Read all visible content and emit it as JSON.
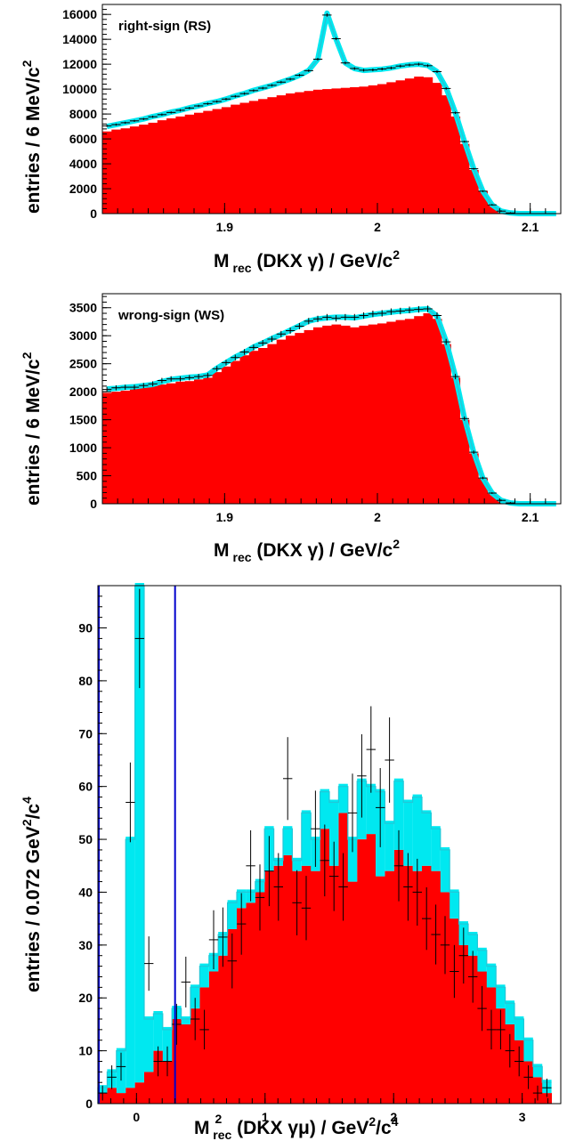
{
  "colors": {
    "background_fill": "#ff0000",
    "total_fill": "#00e8f0",
    "total_line": "#22c8d8",
    "data_marker": "#000000",
    "cut_line": "#0000cc",
    "frame": "#000000"
  },
  "chart_data": [
    {
      "type": "bar",
      "panel_label": "right-sign (RS)",
      "xlabel": {
        "main": "M",
        "sub": "rec",
        "rest": " (DKX γ) / GeV/c",
        "sup": "2"
      },
      "ylabel": {
        "main": "entries / 6 MeV/c",
        "sup": "2"
      },
      "xlim": [
        1.82,
        2.12
      ],
      "ylim": [
        0,
        16800
      ],
      "x_ticks": [
        1.9,
        2.0,
        2.1
      ],
      "x_tick_labels": [
        "1.9",
        "2",
        "2.1"
      ],
      "y_ticks": [
        0,
        2000,
        4000,
        6000,
        8000,
        10000,
        12000,
        14000,
        16000
      ],
      "y_tick_labels": [
        "0",
        "2000",
        "4000",
        "6000",
        "8000",
        "10000",
        "12000",
        "14000",
        "16000"
      ],
      "bin_width": 0.006,
      "bins_x": [
        1.823,
        1.829,
        1.835,
        1.841,
        1.847,
        1.853,
        1.859,
        1.865,
        1.871,
        1.877,
        1.883,
        1.889,
        1.895,
        1.901,
        1.907,
        1.913,
        1.919,
        1.925,
        1.931,
        1.937,
        1.943,
        1.949,
        1.955,
        1.961,
        1.967,
        1.973,
        1.979,
        1.985,
        1.991,
        1.997,
        2.003,
        2.009,
        2.015,
        2.021,
        2.027,
        2.033,
        2.039,
        2.045,
        2.051,
        2.057,
        2.063,
        2.069,
        2.075,
        2.081,
        2.087,
        2.093,
        2.099,
        2.105,
        2.111,
        2.117
      ],
      "background": [
        6600,
        6750,
        6850,
        7000,
        7150,
        7300,
        7500,
        7650,
        7800,
        7950,
        8100,
        8250,
        8400,
        8550,
        8750,
        8900,
        9050,
        9200,
        9350,
        9500,
        9650,
        9750,
        9850,
        9950,
        10000,
        10050,
        10100,
        10150,
        10200,
        10300,
        10400,
        10550,
        10700,
        10850,
        11000,
        10950,
        10500,
        9500,
        7800,
        5600,
        3500,
        1800,
        700,
        200,
        50,
        0,
        0,
        0,
        0,
        0
      ],
      "total_fit": [
        7000,
        7150,
        7300,
        7450,
        7600,
        7800,
        7950,
        8150,
        8300,
        8500,
        8650,
        8850,
        9000,
        9200,
        9450,
        9650,
        9900,
        10100,
        10300,
        10550,
        10800,
        11100,
        11500,
        12400,
        16100,
        14000,
        12100,
        11650,
        11500,
        11550,
        11600,
        11700,
        11850,
        11950,
        12000,
        11900,
        11400,
        10100,
        8100,
        5800,
        3600,
        1800,
        700,
        200,
        50,
        0,
        0,
        0,
        0,
        0
      ],
      "data_points": [
        7050,
        7150,
        7300,
        7450,
        7600,
        7780,
        7950,
        8120,
        8300,
        8480,
        8650,
        8820,
        9000,
        9200,
        9420,
        9640,
        9880,
        10080,
        10300,
        10560,
        10800,
        11120,
        11480,
        12400,
        15950,
        14050,
        12100,
        11650,
        11520,
        11540,
        11620,
        11700,
        11850,
        11940,
        12000,
        11880,
        11400,
        10050,
        8100,
        5780,
        3600,
        1800,
        700,
        200,
        50,
        0,
        0,
        0,
        0,
        0
      ]
    },
    {
      "type": "bar",
      "panel_label": "wrong-sign (WS)",
      "xlabel": {
        "main": "M",
        "sub": "rec",
        "rest": " (DKX γ) / GeV/c",
        "sup": "2"
      },
      "ylabel": {
        "main": "entries / 6 MeV/c",
        "sup": "2"
      },
      "xlim": [
        1.82,
        2.12
      ],
      "ylim": [
        0,
        3750
      ],
      "x_ticks": [
        1.9,
        2.0,
        2.1
      ],
      "x_tick_labels": [
        "1.9",
        "2",
        "2.1"
      ],
      "y_ticks": [
        0,
        500,
        1000,
        1500,
        2000,
        2500,
        3000,
        3500
      ],
      "y_tick_labels": [
        "0",
        "500",
        "1000",
        "1500",
        "2000",
        "2500",
        "3000",
        "3500"
      ],
      "bin_width": 0.006,
      "bins_x": [
        1.823,
        1.829,
        1.835,
        1.841,
        1.847,
        1.853,
        1.859,
        1.865,
        1.871,
        1.877,
        1.883,
        1.889,
        1.895,
        1.901,
        1.907,
        1.913,
        1.919,
        1.925,
        1.931,
        1.937,
        1.943,
        1.949,
        1.955,
        1.961,
        1.967,
        1.973,
        1.979,
        1.985,
        1.991,
        1.997,
        2.003,
        2.009,
        2.015,
        2.021,
        2.027,
        2.033,
        2.039,
        2.045,
        2.051,
        2.057,
        2.063,
        2.069,
        2.075,
        2.081,
        2.087,
        2.093,
        2.099,
        2.105,
        2.111,
        2.117
      ],
      "background": [
        1980,
        2000,
        2020,
        2050,
        2080,
        2100,
        2130,
        2150,
        2180,
        2190,
        2220,
        2250,
        2350,
        2450,
        2550,
        2650,
        2730,
        2780,
        2850,
        2930,
        3000,
        3050,
        3100,
        3150,
        3180,
        3200,
        3180,
        3150,
        3180,
        3200,
        3220,
        3250,
        3280,
        3300,
        3350,
        3400,
        3300,
        2850,
        2250,
        1500,
        900,
        450,
        180,
        60,
        15,
        0,
        0,
        0,
        0,
        0
      ],
      "total_fit": [
        2050,
        2060,
        2080,
        2090,
        2110,
        2130,
        2180,
        2220,
        2240,
        2260,
        2270,
        2300,
        2420,
        2520,
        2620,
        2700,
        2800,
        2870,
        2950,
        3020,
        3100,
        3180,
        3260,
        3300,
        3320,
        3330,
        3330,
        3320,
        3350,
        3380,
        3400,
        3420,
        3440,
        3450,
        3470,
        3480,
        3350,
        2900,
        2280,
        1530,
        920,
        460,
        190,
        60,
        15,
        0,
        0,
        0,
        0,
        0
      ],
      "data_points": [
        2040,
        2070,
        2080,
        2080,
        2110,
        2140,
        2200,
        2230,
        2230,
        2250,
        2270,
        2290,
        2410,
        2520,
        2610,
        2710,
        2790,
        2870,
        2940,
        3030,
        3090,
        3170,
        3260,
        3300,
        3330,
        3310,
        3330,
        3330,
        3360,
        3390,
        3400,
        3430,
        3440,
        3460,
        3470,
        3480,
        3360,
        2890,
        2270,
        1520,
        920,
        460,
        190,
        60,
        15,
        0,
        0,
        0,
        0,
        0
      ]
    },
    {
      "type": "bar",
      "xlabel": {
        "main": "M",
        "sub": "rec",
        "sup_on_sub": "2",
        "rest": " (DKX γμ) / GeV",
        "sup": "2",
        "rest2": "/c",
        "sup2": "4"
      },
      "ylabel": {
        "main": "entries / 0.072 GeV",
        "sup": "2",
        "rest": "/c",
        "sup2": "4"
      },
      "xlim": [
        -0.3,
        3.3
      ],
      "ylim": [
        0,
        98
      ],
      "x_ticks": [
        0,
        1,
        2,
        3
      ],
      "x_tick_labels": [
        "0",
        "1",
        "2",
        "3"
      ],
      "y_ticks": [
        0,
        10,
        20,
        30,
        40,
        50,
        60,
        70,
        80,
        90
      ],
      "y_tick_labels": [
        "0",
        "10",
        "20",
        "30",
        "40",
        "50",
        "60",
        "70",
        "80",
        "90"
      ],
      "cut_lines_x": [
        -0.3,
        0.3
      ],
      "bin_width": 0.072,
      "bins_x": [
        -0.264,
        -0.192,
        -0.12,
        -0.048,
        0.024,
        0.096,
        0.168,
        0.24,
        0.312,
        0.384,
        0.456,
        0.528,
        0.6,
        0.672,
        0.744,
        0.816,
        0.888,
        0.96,
        1.032,
        1.104,
        1.176,
        1.248,
        1.32,
        1.392,
        1.464,
        1.536,
        1.608,
        1.68,
        1.752,
        1.824,
        1.896,
        1.968,
        2.04,
        2.112,
        2.184,
        2.256,
        2.328,
        2.4,
        2.472,
        2.544,
        2.616,
        2.688,
        2.76,
        2.832,
        2.904,
        2.976,
        3.048,
        3.12,
        3.192
      ],
      "background": [
        2,
        3,
        2,
        3,
        4,
        6,
        10,
        8,
        16,
        15,
        18,
        22,
        25,
        28,
        33,
        37,
        38,
        40,
        44,
        45,
        47,
        44,
        45,
        44,
        52,
        45,
        55,
        42,
        50,
        51,
        43,
        44,
        48,
        45,
        44,
        45,
        44,
        40,
        35,
        30,
        28,
        25,
        22,
        18,
        15,
        12,
        8,
        5,
        2
      ],
      "total_fit": [
        3,
        6,
        10,
        50,
        98,
        16,
        17,
        14,
        18,
        16,
        22,
        26,
        28,
        32,
        38,
        40,
        40,
        42,
        52,
        46,
        52,
        46,
        55,
        50,
        59,
        57,
        60,
        50,
        61,
        60,
        59,
        53,
        61,
        57,
        58,
        55,
        52,
        48,
        40,
        34,
        32,
        29,
        26,
        22,
        19,
        16,
        12,
        7,
        4
      ],
      "data_points": [
        2,
        5,
        7,
        57,
        88,
        26.5,
        8,
        8,
        15,
        23,
        16,
        14,
        31,
        31.5,
        27,
        34,
        45,
        39,
        44,
        41,
        61.5,
        38,
        37,
        52,
        46,
        43,
        41,
        55,
        62,
        67,
        56,
        65,
        45,
        41,
        40,
        35,
        32,
        30,
        25,
        28,
        24,
        18,
        14,
        14,
        10,
        8,
        5,
        2,
        3
      ]
    }
  ]
}
